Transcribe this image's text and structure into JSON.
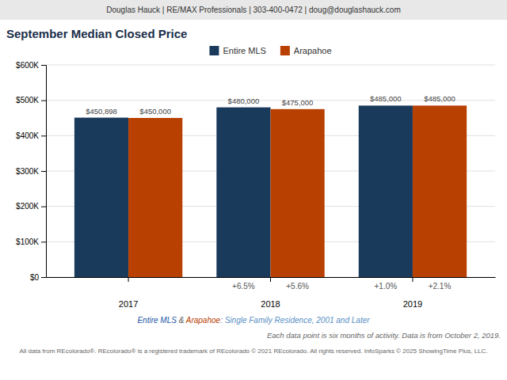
{
  "chart_data": {
    "type": "bar",
    "header": "Douglas Hauck | RE/MAX Professionals | 303-400-0472 | doug@douglashauck.com",
    "title": "September Median Closed Price",
    "categories": [
      "2017",
      "2018",
      "2019"
    ],
    "series": [
      {
        "name": "Entire MLS",
        "color": "#1a3a5c",
        "values": [
          450898,
          480000,
          485000
        ],
        "value_labels": [
          "$450,898",
          "$480,000",
          "$485,000"
        ],
        "changes": [
          null,
          "+6.5%",
          "+1.0%"
        ]
      },
      {
        "name": "Arapahoe",
        "color": "#b84000",
        "values": [
          450000,
          475000,
          485000
        ],
        "value_labels": [
          "$450,000",
          "$475,000",
          "$485,000"
        ],
        "changes": [
          null,
          "+5.6%",
          "+2.1%"
        ]
      }
    ],
    "ylim": [
      0,
      600000
    ],
    "yticks": [
      {
        "value": 0,
        "label": "$0"
      },
      {
        "value": 100000,
        "label": "$100K"
      },
      {
        "value": 200000,
        "label": "$200K"
      },
      {
        "value": 300000,
        "label": "$300K"
      },
      {
        "value": 400000,
        "label": "$400K"
      },
      {
        "value": 500000,
        "label": "$500K"
      },
      {
        "value": 600000,
        "label": "$600K"
      }
    ],
    "grid": true,
    "legend": "top",
    "data_labels": true,
    "caption": [
      {
        "text": "Entire MLS",
        "color": "#2255a4"
      },
      {
        "text": " & ",
        "color": "#555555"
      },
      {
        "text": "Arapahoe",
        "color": "#b84000"
      },
      {
        "text": ": Single Family Residence, 2001 and Later",
        "color": "#5a8fc4"
      }
    ],
    "notes": [
      "Each data point is six months of activity. Data is from October 2, 2019.",
      "All data from REcolorado®. REcolorado® is a registered trademark of REcolorado © 2021 REcolorado. All rights reserved. InfoSparks © 2025 ShowingTime Plus, LLC."
    ]
  }
}
